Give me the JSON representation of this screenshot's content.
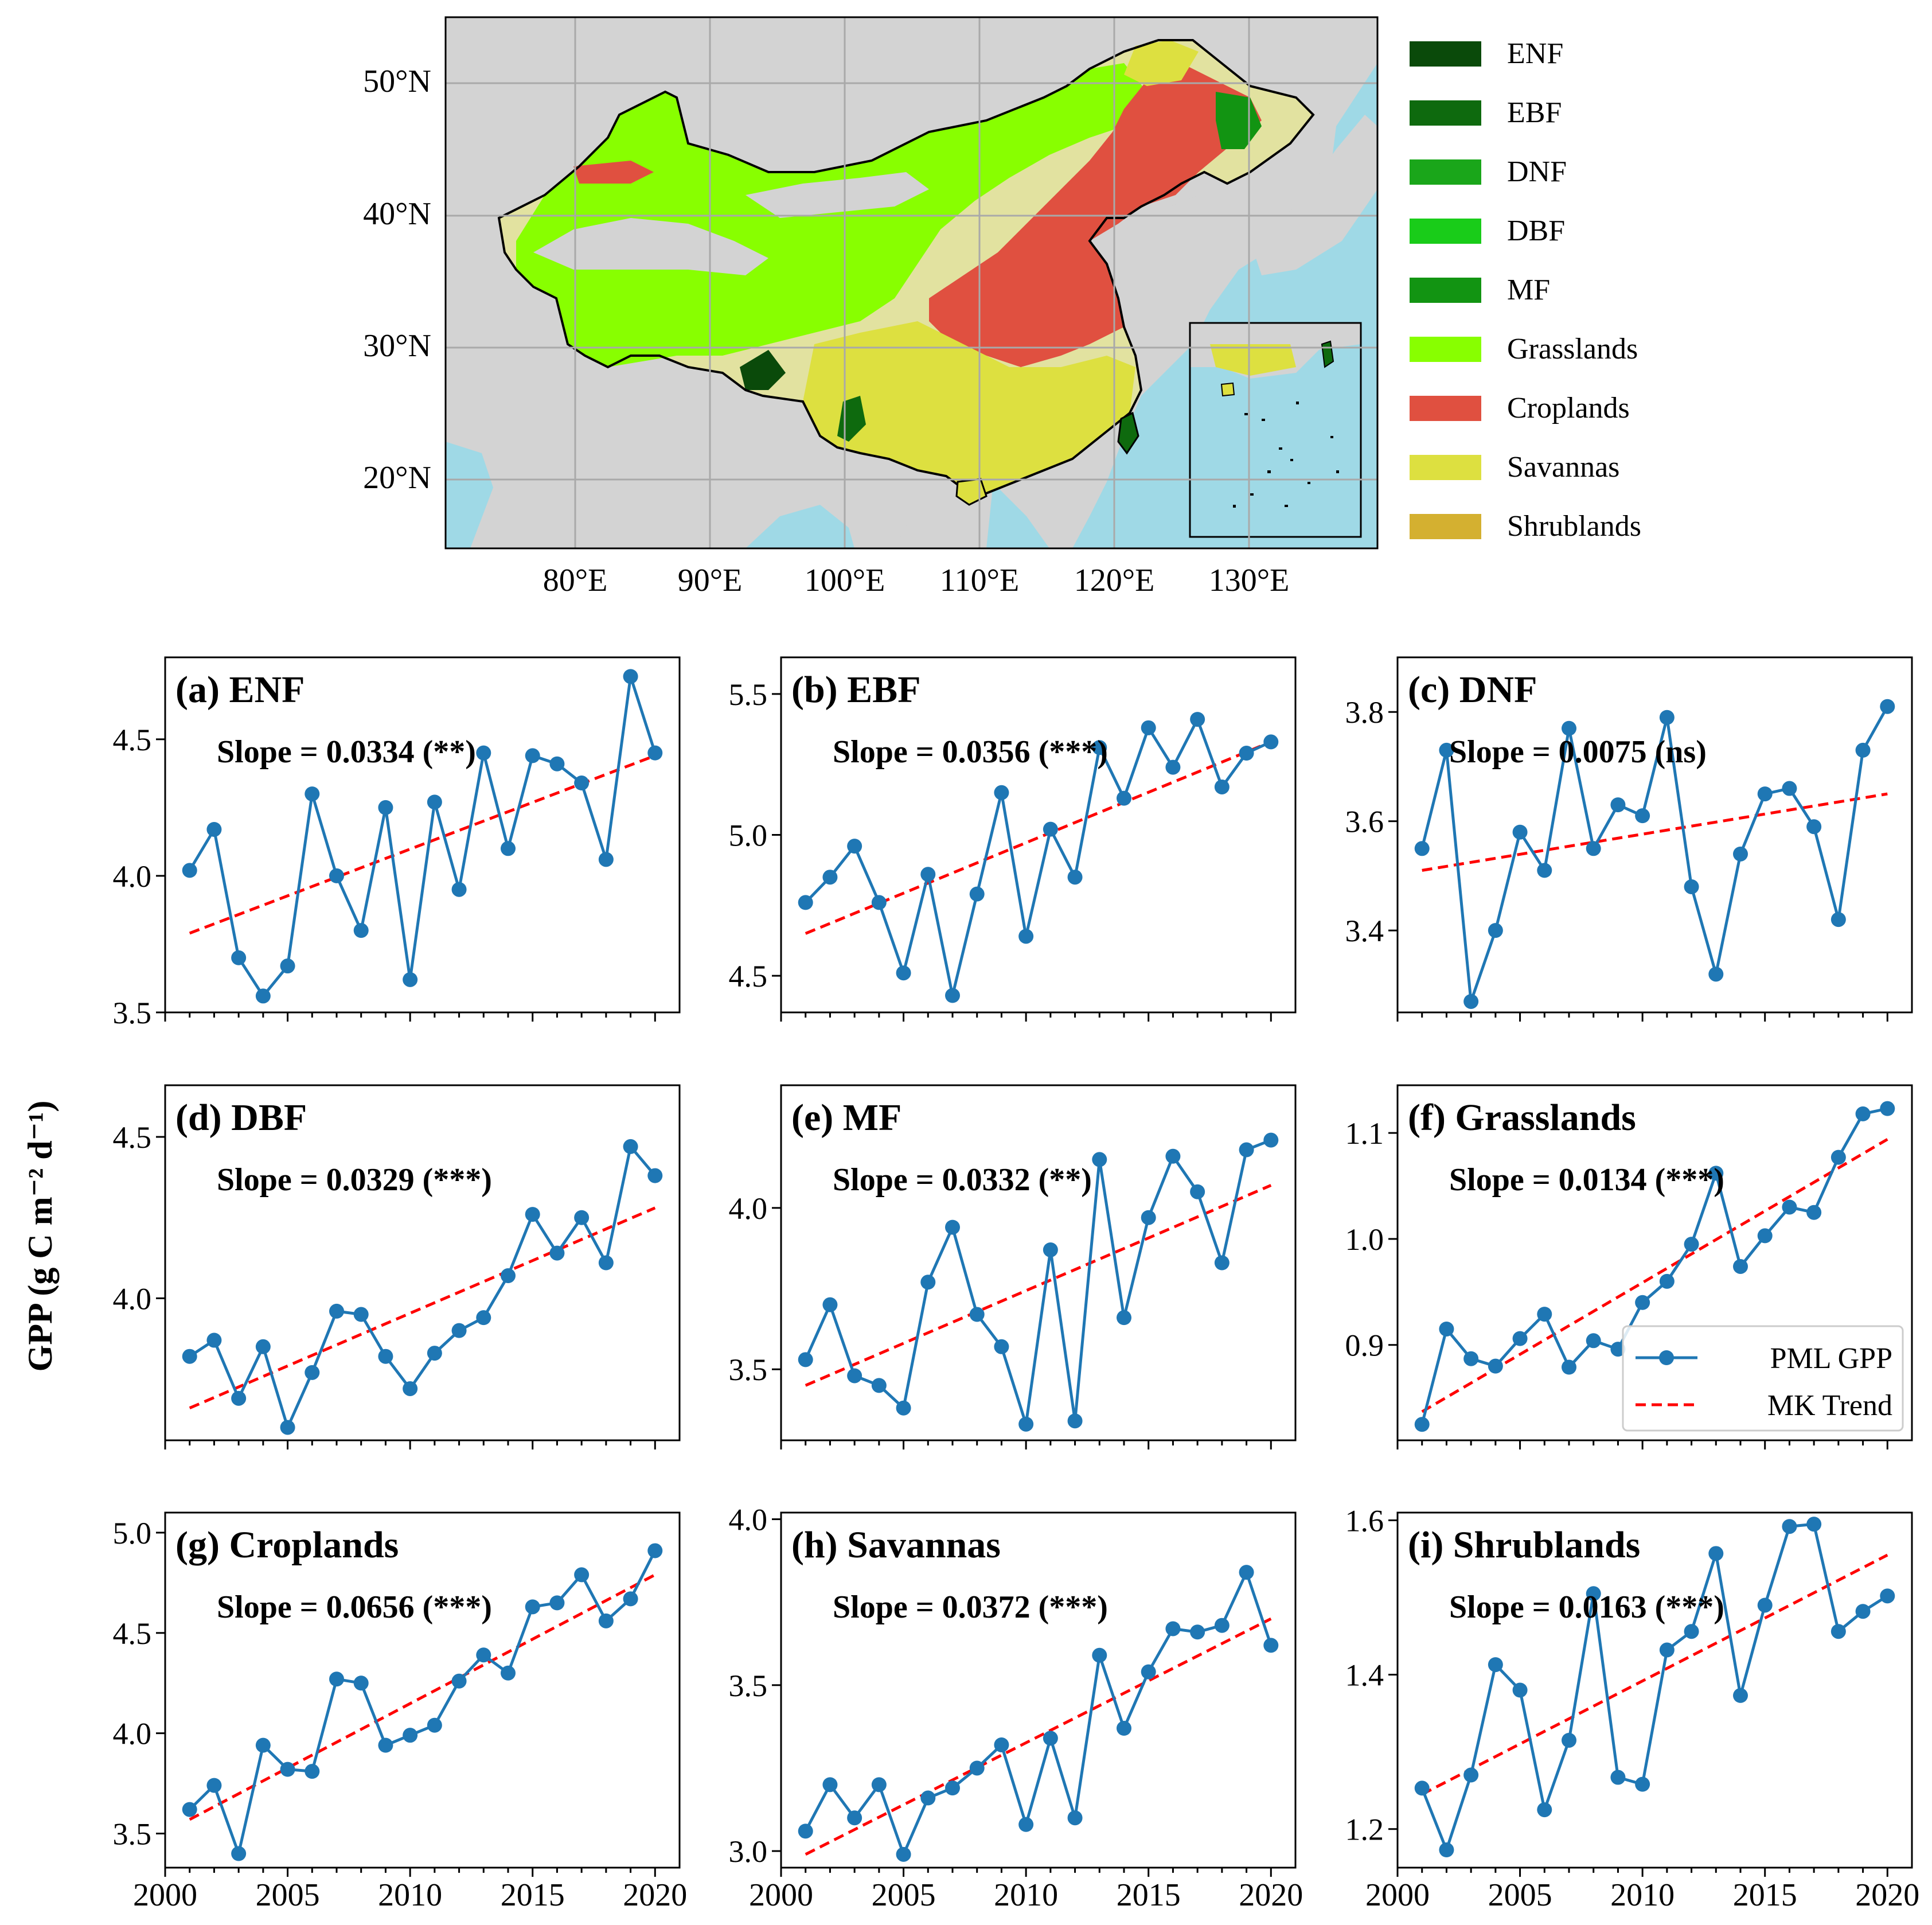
{
  "map": {
    "lat_labels": [
      "50°N",
      "40°N",
      "30°N",
      "20°N"
    ],
    "lon_labels": [
      "80°E",
      "90°E",
      "100°E",
      "110°E",
      "120°E",
      "130°E"
    ],
    "legend": [
      {
        "label": "ENF",
        "color": "#0a4a0a"
      },
      {
        "label": "EBF",
        "color": "#0e6a0e"
      },
      {
        "label": "DNF",
        "color": "#1aa61a"
      },
      {
        "label": "DBF",
        "color": "#19cc19"
      },
      {
        "label": "MF",
        "color": "#129412"
      },
      {
        "label": "Grasslands",
        "color": "#88ff00"
      },
      {
        "label": "Croplands",
        "color": "#e05040"
      },
      {
        "label": "Savannas",
        "color": "#dde040"
      },
      {
        "label": "Shrublands",
        "color": "#d4b030"
      }
    ],
    "colors": {
      "land": "#d3d3d3",
      "ocean": "#9fd9e6",
      "grid": "#a9a9a9"
    }
  },
  "ylabel": "GPP (g C m⁻² d⁻¹)",
  "series_style": {
    "gpp_color": "#1f77b4",
    "trend_color": "#ff0000"
  },
  "legend_panel": {
    "gpp": "PML GPP",
    "trend": "MK Trend"
  },
  "chart_data": [
    {
      "type": "line",
      "panel": "(a) ENF",
      "slope_text": "Slope = 0.0334 (**)",
      "x": [
        2001,
        2002,
        2003,
        2004,
        2005,
        2006,
        2007,
        2008,
        2009,
        2010,
        2011,
        2012,
        2013,
        2014,
        2015,
        2016,
        2017,
        2018,
        2019,
        2020
      ],
      "values": [
        4.02,
        4.17,
        3.7,
        3.56,
        3.67,
        4.3,
        4.0,
        3.8,
        4.25,
        3.62,
        4.27,
        3.95,
        4.45,
        4.1,
        4.44,
        4.41,
        4.34,
        4.06,
        4.73,
        4.45
      ],
      "trend": [
        3.79,
        4.44
      ],
      "xlim": [
        2000,
        2021
      ],
      "ylim": [
        3.5,
        4.8
      ],
      "yticks": [
        3.5,
        4.0,
        4.5
      ]
    },
    {
      "type": "line",
      "panel": "(b) EBF",
      "slope_text": "Slope = 0.0356 (***)",
      "x": [
        2001,
        2002,
        2003,
        2004,
        2005,
        2006,
        2007,
        2008,
        2009,
        2010,
        2011,
        2012,
        2013,
        2014,
        2015,
        2016,
        2017,
        2018,
        2019,
        2020
      ],
      "values": [
        4.76,
        4.85,
        4.96,
        4.76,
        4.51,
        4.86,
        4.43,
        4.79,
        5.15,
        4.64,
        5.02,
        4.85,
        5.31,
        5.13,
        5.38,
        5.24,
        5.41,
        5.17,
        5.29,
        5.33
      ],
      "trend": [
        4.65,
        5.33
      ],
      "xlim": [
        2000,
        2021
      ],
      "ylim": [
        4.37,
        5.63
      ],
      "yticks": [
        4.5,
        5.0,
        5.5
      ]
    },
    {
      "type": "line",
      "panel": "(c) DNF",
      "slope_text": "Slope = 0.0075 (ns)",
      "x": [
        2001,
        2002,
        2003,
        2004,
        2005,
        2006,
        2007,
        2008,
        2009,
        2010,
        2011,
        2012,
        2013,
        2014,
        2015,
        2016,
        2017,
        2018,
        2019,
        2020
      ],
      "values": [
        3.55,
        3.73,
        3.27,
        3.4,
        3.58,
        3.51,
        3.77,
        3.55,
        3.63,
        3.61,
        3.79,
        3.48,
        3.32,
        3.54,
        3.65,
        3.66,
        3.59,
        3.42,
        3.73,
        3.81
      ],
      "trend": [
        3.51,
        3.65
      ],
      "xlim": [
        2000,
        2021
      ],
      "ylim": [
        3.25,
        3.9
      ],
      "yticks": [
        3.4,
        3.6,
        3.8
      ]
    },
    {
      "type": "line",
      "panel": "(d) DBF",
      "slope_text": "Slope = 0.0329 (***)",
      "x": [
        2001,
        2002,
        2003,
        2004,
        2005,
        2006,
        2007,
        2008,
        2009,
        2010,
        2011,
        2012,
        2013,
        2014,
        2015,
        2016,
        2017,
        2018,
        2019,
        2020
      ],
      "values": [
        3.82,
        3.87,
        3.69,
        3.85,
        3.6,
        3.77,
        3.96,
        3.95,
        3.82,
        3.72,
        3.83,
        3.9,
        3.94,
        4.07,
        4.26,
        4.14,
        4.25,
        4.11,
        4.47,
        4.38
      ],
      "trend": [
        3.66,
        4.28
      ],
      "xlim": [
        2000,
        2021
      ],
      "ylim": [
        3.56,
        4.66
      ],
      "yticks": [
        4.0,
        4.5
      ]
    },
    {
      "type": "line",
      "panel": "(e) MF",
      "slope_text": "Slope = 0.0332 (**)",
      "x": [
        2001,
        2002,
        2003,
        2004,
        2005,
        2006,
        2007,
        2008,
        2009,
        2010,
        2011,
        2012,
        2013,
        2014,
        2015,
        2016,
        2017,
        2018,
        2019,
        2020
      ],
      "values": [
        3.53,
        3.7,
        3.48,
        3.45,
        3.38,
        3.77,
        3.94,
        3.67,
        3.57,
        3.33,
        3.87,
        3.34,
        4.15,
        3.66,
        3.97,
        4.16,
        4.05,
        3.83,
        4.18,
        4.21
      ],
      "trend": [
        3.45,
        4.07
      ],
      "xlim": [
        2000,
        2021
      ],
      "ylim": [
        3.28,
        4.38
      ],
      "yticks": [
        3.5,
        4.0
      ]
    },
    {
      "type": "line",
      "panel": "(f) Grasslands",
      "slope_text": "Slope = 0.0134 (***)",
      "x": [
        2001,
        2002,
        2003,
        2004,
        2005,
        2006,
        2007,
        2008,
        2009,
        2010,
        2011,
        2012,
        2013,
        2014,
        2015,
        2016,
        2017,
        2018,
        2019,
        2020
      ],
      "values": [
        0.825,
        0.915,
        0.887,
        0.88,
        0.906,
        0.929,
        0.879,
        0.904,
        0.896,
        0.94,
        0.96,
        0.995,
        1.062,
        0.974,
        1.003,
        1.03,
        1.025,
        1.077,
        1.118,
        1.123
      ],
      "trend": [
        0.837,
        1.094
      ],
      "xlim": [
        2000,
        2021
      ],
      "ylim": [
        0.81,
        1.145
      ],
      "yticks": [
        0.9,
        1.0,
        1.1
      ]
    },
    {
      "type": "line",
      "panel": "(g) Croplands",
      "slope_text": "Slope = 0.0656 (***)",
      "x": [
        2001,
        2002,
        2003,
        2004,
        2005,
        2006,
        2007,
        2008,
        2009,
        2010,
        2011,
        2012,
        2013,
        2014,
        2015,
        2016,
        2017,
        2018,
        2019,
        2020
      ],
      "values": [
        3.62,
        3.74,
        3.4,
        3.94,
        3.82,
        3.81,
        4.27,
        4.25,
        3.94,
        3.99,
        4.04,
        4.26,
        4.39,
        4.3,
        4.63,
        4.65,
        4.79,
        4.56,
        4.67,
        4.91
      ],
      "trend": [
        3.57,
        4.79
      ],
      "xlim": [
        2000,
        2021
      ],
      "ylim": [
        3.33,
        5.1
      ],
      "yticks": [
        3.5,
        4.0,
        4.5,
        5.0
      ]
    },
    {
      "type": "line",
      "panel": "(h) Savannas",
      "slope_text": "Slope = 0.0372 (***)",
      "x": [
        2001,
        2002,
        2003,
        2004,
        2005,
        2006,
        2007,
        2008,
        2009,
        2010,
        2011,
        2012,
        2013,
        2014,
        2015,
        2016,
        2017,
        2018,
        2019,
        2020
      ],
      "values": [
        3.06,
        3.2,
        3.1,
        3.2,
        2.99,
        3.16,
        3.19,
        3.25,
        3.32,
        3.08,
        3.34,
        3.1,
        3.59,
        3.37,
        3.54,
        3.67,
        3.66,
        3.68,
        3.84,
        3.62
      ],
      "trend": [
        2.99,
        3.7
      ],
      "xlim": [
        2000,
        2021
      ],
      "ylim": [
        2.95,
        4.02
      ],
      "yticks": [
        3.0,
        3.5,
        4.0
      ]
    },
    {
      "type": "line",
      "panel": "(i) Shrublands",
      "slope_text": "Slope = 0.0163 (***)",
      "x": [
        2001,
        2002,
        2003,
        2004,
        2005,
        2006,
        2007,
        2008,
        2009,
        2010,
        2011,
        2012,
        2013,
        2014,
        2015,
        2016,
        2017,
        2018,
        2019,
        2020
      ],
      "values": [
        1.253,
        1.173,
        1.27,
        1.413,
        1.38,
        1.225,
        1.315,
        1.505,
        1.267,
        1.258,
        1.432,
        1.456,
        1.557,
        1.373,
        1.49,
        1.592,
        1.595,
        1.456,
        1.482,
        1.502
      ],
      "trend": [
        1.245,
        1.555
      ],
      "xlim": [
        2000,
        2021
      ],
      "ylim": [
        1.15,
        1.61
      ],
      "yticks": [
        1.2,
        1.4,
        1.6
      ]
    }
  ]
}
